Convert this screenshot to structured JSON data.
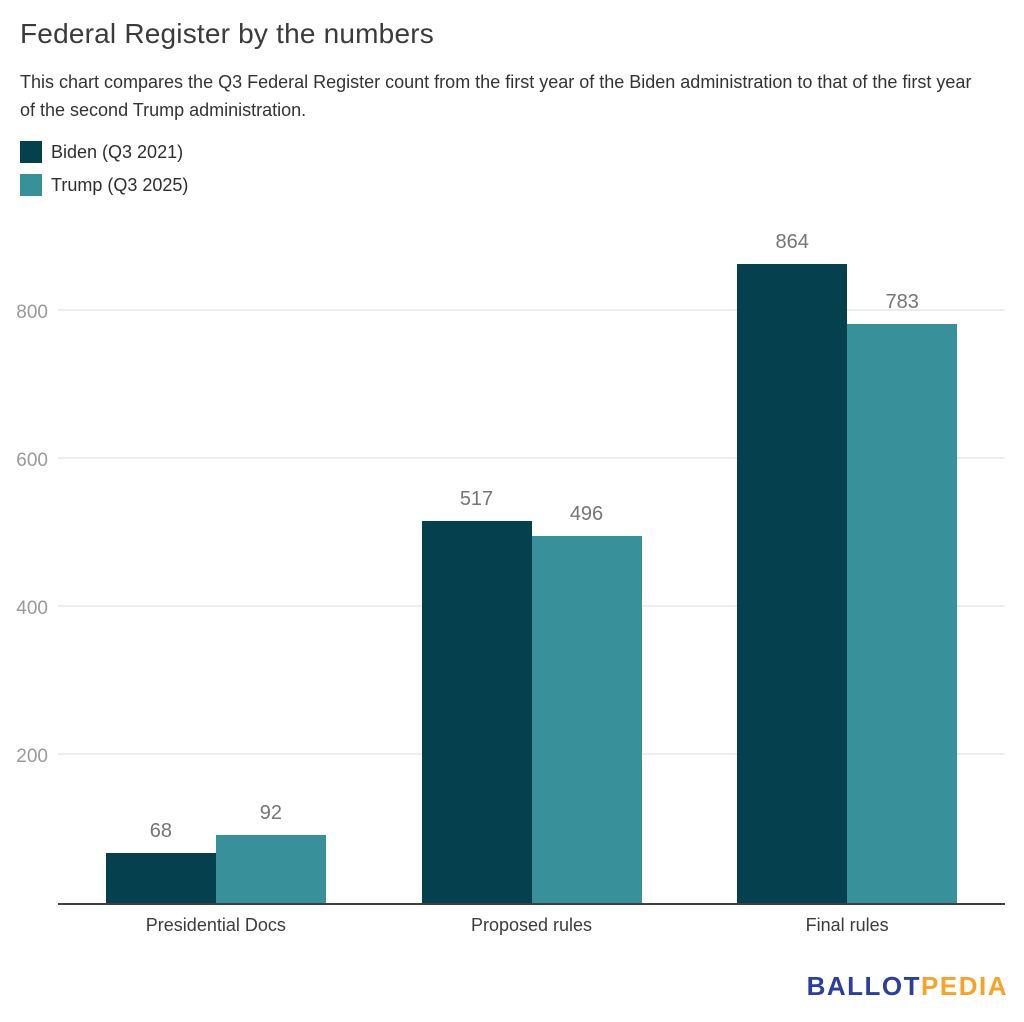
{
  "header": {
    "title": "Federal Register by the numbers",
    "subtitle": "This chart compares the Q3 Federal Register count from the first year of the Biden administration to that of the first year of the second Trump administration."
  },
  "chart_data": {
    "type": "bar",
    "title": "Federal Register by the numbers",
    "categories": [
      "Presidential Docs",
      "Proposed rules",
      "Final rules"
    ],
    "series": [
      {
        "name": "Biden (Q3 2021)",
        "color": "#04404e",
        "values": [
          68,
          517,
          864
        ]
      },
      {
        "name": "Trump (Q3 2025)",
        "color": "#38909b",
        "values": [
          92,
          496,
          783
        ]
      }
    ],
    "xlabel": "",
    "ylabel": "",
    "ylim": [
      0,
      910
    ],
    "yticks": [
      200,
      400,
      600,
      800
    ],
    "grid": true,
    "legend_position": "top-left",
    "data_labels": true
  },
  "footer": {
    "logo": {
      "part1": "BALLOT",
      "part2": "PEDIA",
      "color1": "#2b3f9e",
      "color2": "#f7a327"
    }
  },
  "colors": {
    "background": "#ffffff",
    "title": "#3b3b3b",
    "subtitle": "#333333",
    "axis_line": "#3f3f3f",
    "gridline": "#ededed",
    "tick_label": "#9a9a9a",
    "data_label": "#757575",
    "category_label": "#3c3c3c"
  }
}
